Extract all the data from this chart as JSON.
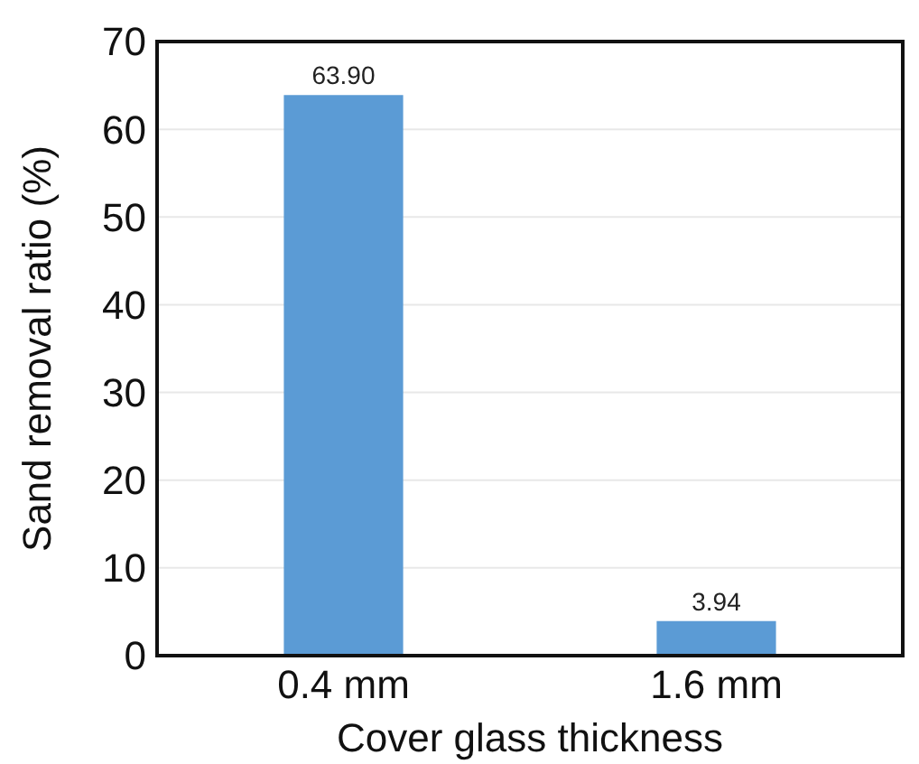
{
  "chart_data": {
    "type": "bar",
    "xlabel": "Cover glass thickness",
    "ylabel": "Sand removal ratio (%)",
    "categories": [
      "0.4 mm",
      "1.6 mm"
    ],
    "values": [
      63.9,
      3.94
    ],
    "color": "#5b9bd5",
    "value_labels": [
      "63.90",
      "3.94"
    ],
    "ylim": [
      0,
      70
    ],
    "yticks": [
      0,
      10,
      20,
      30,
      40,
      50,
      60,
      70
    ],
    "grid": "y"
  }
}
